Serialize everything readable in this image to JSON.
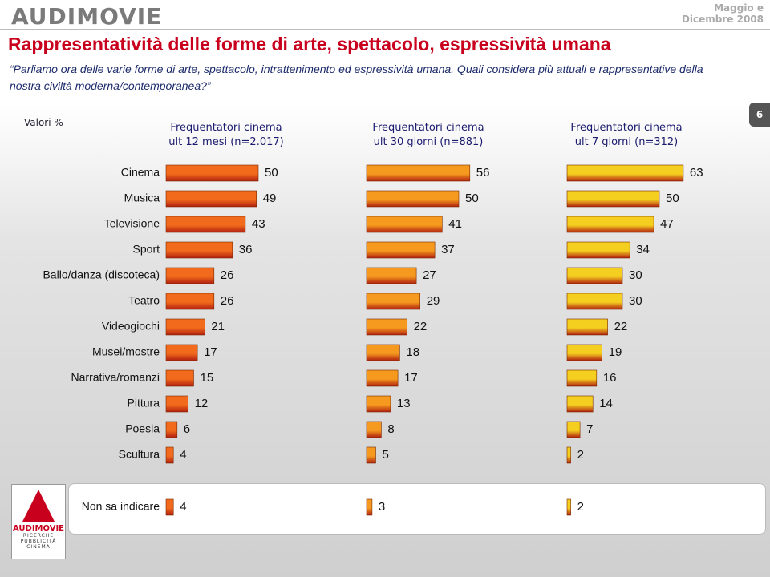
{
  "header": {
    "brand": "AUDIMOVIE",
    "period": "Maggio e Dicembre 2008",
    "page": "6"
  },
  "title": "Rappresentatività delle forme di arte, spettacolo, espressività umana",
  "subtitle": "“Parliamo ora delle varie forme di arte, spettacolo, intrattenimento ed espressività umana. Quali considera più attuali e rappresentative della nostra civiltà moderna/contemporanea?”",
  "note": "Valori %",
  "footer": {
    "brand": "AUDIMOVIE",
    "tagline": "RICERCHE PUBBLICITÀ CINEMA"
  },
  "chart_data": {
    "type": "bar",
    "orientation": "horizontal",
    "categories": [
      "Cinema",
      "Musica",
      "Televisione",
      "Sport",
      "Ballo/danza (discoteca)",
      "Teatro",
      "Videogiochi",
      "Musei/mostre",
      "Narrativa/romanzi",
      "Pittura",
      "Poesia",
      "Scultura",
      "Non sa indicare"
    ],
    "series": [
      {
        "name": "Frequentatori cinema ult 12 mesi (n=2.017)",
        "color": "#f26a1b",
        "values": [
          50,
          49,
          43,
          36,
          26,
          26,
          21,
          17,
          15,
          12,
          6,
          4,
          4
        ]
      },
      {
        "name": "Frequentatori cinema ult 30 giorni (n=881)",
        "color": "#f59a1e",
        "values": [
          56,
          50,
          41,
          37,
          27,
          29,
          22,
          18,
          17,
          13,
          8,
          5,
          3
        ]
      },
      {
        "name": "Frequentatori cinema ult 7 giorni (n=312)",
        "color": "#f5cf1f",
        "values": [
          63,
          50,
          47,
          34,
          30,
          30,
          22,
          19,
          16,
          14,
          7,
          2,
          2
        ]
      }
    ]
  }
}
